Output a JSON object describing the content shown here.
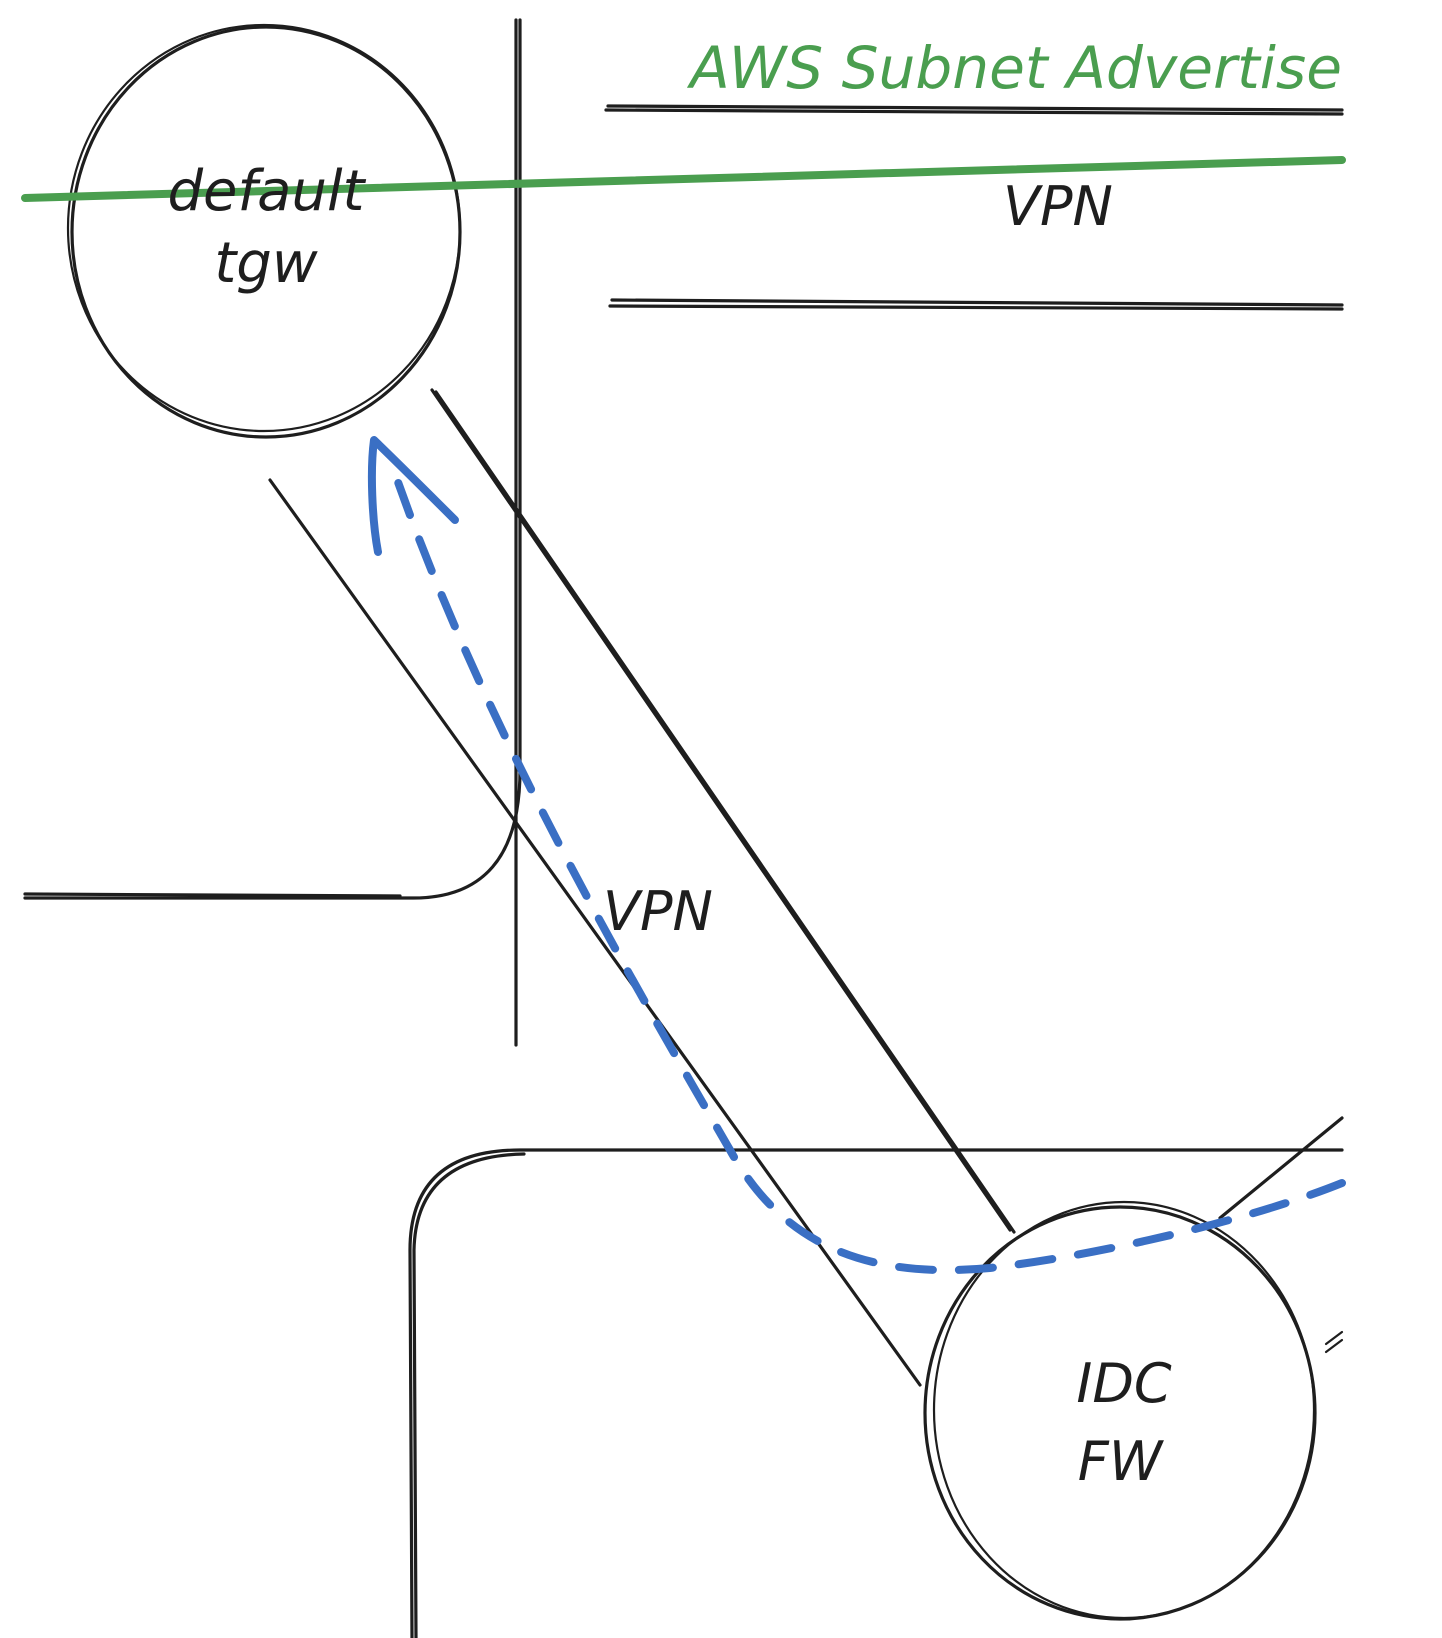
{
  "diagram": {
    "title": "AWS Subnet Advertise",
    "nodes": {
      "tgw": {
        "line1": "default",
        "line2": "tgw"
      },
      "fw": {
        "line1": "IDC",
        "line2": "FW"
      }
    },
    "labels": {
      "vpn_top": "VPN",
      "vpn_middle": "VPN"
    },
    "colors": {
      "ink": "#1e1e1e",
      "advertise_line": "#4a9e4f",
      "traffic_path": "#3a6fc4"
    }
  }
}
